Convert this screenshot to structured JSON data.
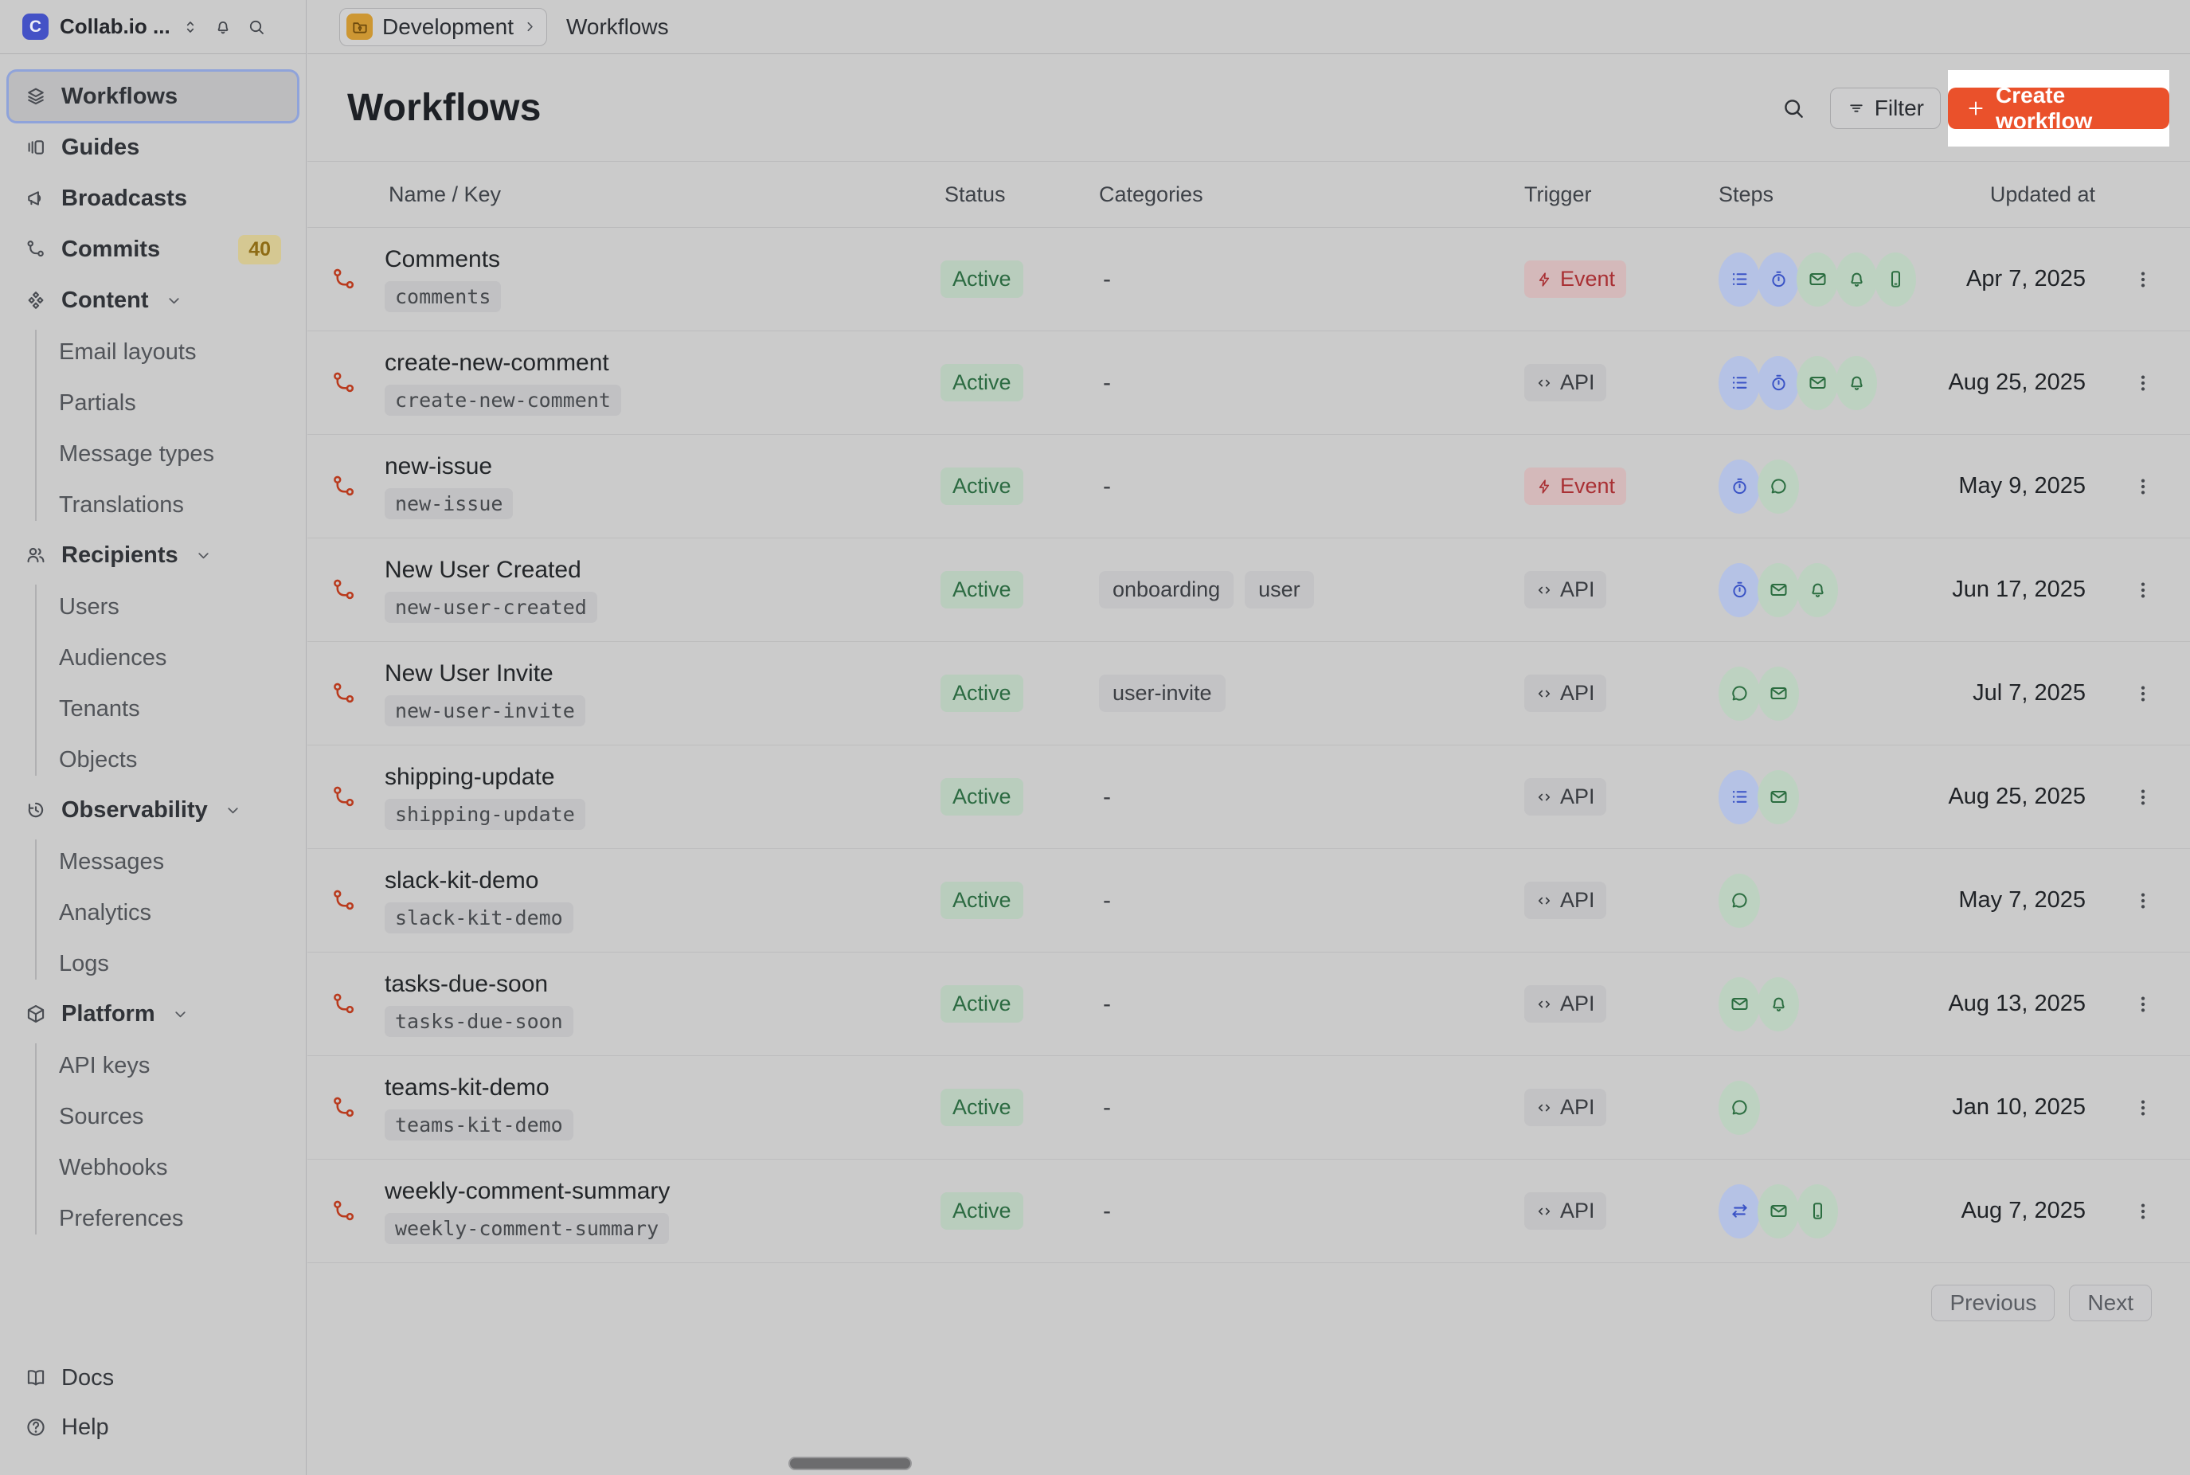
{
  "app": {
    "background": "#cbcbcb",
    "accent": "#ea512b"
  },
  "sidebar": {
    "workspace": "Collab.io ...",
    "logo_letter": "C",
    "header_icons": [
      "sort",
      "bell",
      "search"
    ],
    "sections": [
      {
        "label": "Workflows",
        "icon": "layers",
        "selected": true
      },
      {
        "label": "Guides",
        "icon": "guides"
      },
      {
        "label": "Broadcasts",
        "icon": "megaphone"
      },
      {
        "label": "Commits",
        "icon": "commit",
        "badge": "40"
      },
      {
        "label": "Content",
        "icon": "content",
        "expanded": true,
        "children": [
          "Email layouts",
          "Partials",
          "Message types",
          "Translations"
        ]
      },
      {
        "label": "Recipients",
        "icon": "people",
        "expanded": true,
        "children": [
          "Users",
          "Audiences",
          "Tenants",
          "Objects"
        ]
      },
      {
        "label": "Observability",
        "icon": "history",
        "expanded": true,
        "children": [
          "Messages",
          "Analytics",
          "Logs"
        ]
      },
      {
        "label": "Platform",
        "icon": "cube",
        "expanded": true,
        "children": [
          "API keys",
          "Sources",
          "Webhooks",
          "Preferences"
        ]
      }
    ],
    "footer": [
      {
        "label": "Docs",
        "icon": "book"
      },
      {
        "label": "Help",
        "icon": "help"
      }
    ]
  },
  "topbar": {
    "environment": "Development",
    "environment_icon": "folder",
    "page": "Workflows"
  },
  "page": {
    "title": "Workflows",
    "search_icon": "search",
    "filter_label": "Filter",
    "filter_icon": "filter-lines",
    "create_label": "Create workflow",
    "create_icon": "plus"
  },
  "table": {
    "columns": [
      "Name / Key",
      "Status",
      "Categories",
      "Trigger",
      "Steps",
      "Updated at"
    ],
    "empty_category_placeholder": "-",
    "row_icon": "workflow",
    "row_menu_icon": "kebab",
    "rows": [
      {
        "name": "Comments",
        "key": "comments",
        "status": "Active",
        "categories": [],
        "trigger": {
          "label": "Event",
          "kind": "event",
          "icon": "lightning"
        },
        "steps": [
          {
            "icon": "list",
            "tone": "blue"
          },
          {
            "icon": "timer",
            "tone": "blue"
          },
          {
            "icon": "email",
            "tone": "green"
          },
          {
            "icon": "bell",
            "tone": "green"
          },
          {
            "icon": "phone",
            "tone": "green"
          }
        ],
        "updated": "Apr 7, 2025"
      },
      {
        "name": "create-new-comment",
        "key": "create-new-comment",
        "status": "Active",
        "categories": [],
        "trigger": {
          "label": "API",
          "kind": "api",
          "icon": "code"
        },
        "steps": [
          {
            "icon": "list",
            "tone": "blue"
          },
          {
            "icon": "timer",
            "tone": "blue"
          },
          {
            "icon": "email",
            "tone": "green"
          },
          {
            "icon": "bell",
            "tone": "green"
          }
        ],
        "updated": "Aug 25, 2025"
      },
      {
        "name": "new-issue",
        "key": "new-issue",
        "status": "Active",
        "categories": [],
        "trigger": {
          "label": "Event",
          "kind": "event",
          "icon": "lightning"
        },
        "steps": [
          {
            "icon": "timer",
            "tone": "blue"
          },
          {
            "icon": "chat",
            "tone": "green"
          }
        ],
        "updated": "May 9, 2025"
      },
      {
        "name": "New User Created",
        "key": "new-user-created",
        "status": "Active",
        "categories": [
          "onboarding",
          "user"
        ],
        "trigger": {
          "label": "API",
          "kind": "api",
          "icon": "code"
        },
        "steps": [
          {
            "icon": "timer",
            "tone": "blue"
          },
          {
            "icon": "email",
            "tone": "green"
          },
          {
            "icon": "bell",
            "tone": "green"
          }
        ],
        "updated": "Jun 17, 2025"
      },
      {
        "name": "New User Invite",
        "key": "new-user-invite",
        "status": "Active",
        "categories": [
          "user-invite"
        ],
        "trigger": {
          "label": "API",
          "kind": "api",
          "icon": "code"
        },
        "steps": [
          {
            "icon": "chat",
            "tone": "green"
          },
          {
            "icon": "email",
            "tone": "green"
          }
        ],
        "updated": "Jul 7, 2025"
      },
      {
        "name": "shipping-update",
        "key": "shipping-update",
        "status": "Active",
        "categories": [],
        "trigger": {
          "label": "API",
          "kind": "api",
          "icon": "code"
        },
        "steps": [
          {
            "icon": "list",
            "tone": "blue"
          },
          {
            "icon": "email",
            "tone": "green"
          }
        ],
        "updated": "Aug 25, 2025"
      },
      {
        "name": "slack-kit-demo",
        "key": "slack-kit-demo",
        "status": "Active",
        "categories": [],
        "trigger": {
          "label": "API",
          "kind": "api",
          "icon": "code"
        },
        "steps": [
          {
            "icon": "chat",
            "tone": "green"
          }
        ],
        "updated": "May 7, 2025"
      },
      {
        "name": "tasks-due-soon",
        "key": "tasks-due-soon",
        "status": "Active",
        "categories": [],
        "trigger": {
          "label": "API",
          "kind": "api",
          "icon": "code"
        },
        "steps": [
          {
            "icon": "email",
            "tone": "green"
          },
          {
            "icon": "bell",
            "tone": "green"
          }
        ],
        "updated": "Aug 13, 2025"
      },
      {
        "name": "teams-kit-demo",
        "key": "teams-kit-demo",
        "status": "Active",
        "categories": [],
        "trigger": {
          "label": "API",
          "kind": "api",
          "icon": "code"
        },
        "steps": [
          {
            "icon": "chat",
            "tone": "green"
          }
        ],
        "updated": "Jan 10, 2025"
      },
      {
        "name": "weekly-comment-summary",
        "key": "weekly-comment-summary",
        "status": "Active",
        "categories": [],
        "trigger": {
          "label": "API",
          "kind": "api",
          "icon": "code"
        },
        "steps": [
          {
            "icon": "swap",
            "tone": "blue"
          },
          {
            "icon": "email",
            "tone": "green"
          },
          {
            "icon": "phone",
            "tone": "green"
          }
        ],
        "updated": "Aug 7, 2025"
      }
    ]
  },
  "pagination": {
    "previous": "Previous",
    "next": "Next"
  },
  "scrollbar": {
    "orientation": "horizontal"
  },
  "colors": {
    "active_bg": "#b9cdbd",
    "active_text": "#2b6a41",
    "event_bg": "#d4b9ba",
    "event_text": "#a93034",
    "api_bg": "#c2c2c4",
    "api_text": "#393c41",
    "step_blue_bg": "#b5c2e5",
    "step_blue_icon": "#3a53c6",
    "step_green_bg": "#bdd2c1",
    "step_green_icon": "#2b6d40",
    "create_button": "#ea512b",
    "highlight_box": "#ffffff",
    "commits_badge_bg": "#d5c892",
    "commits_badge_text": "#8e6c15",
    "logo_bg": "#4452c6",
    "env_icon_bg": "#cd9733",
    "workflow_icon": "#b93a1d"
  }
}
